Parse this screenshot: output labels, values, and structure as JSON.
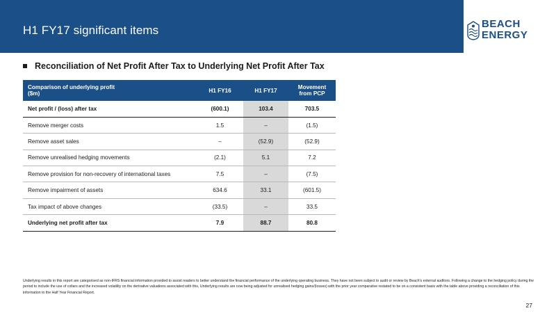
{
  "slide": {
    "title": "H1 FY17 significant items",
    "page_number": "27"
  },
  "logo": {
    "line1": "BEACH",
    "line2": "ENERGY",
    "icon": "beach-energy-logo-mark",
    "color": "#1b4f87"
  },
  "section": {
    "heading": "Reconciliation of Net Profit After Tax to Underlying Net Profit After Tax"
  },
  "table": {
    "header": {
      "label_line1": "Comparison of underlying profit",
      "label_line2": "($m)",
      "col1": "H1 FY16",
      "col2": "H1 FY17",
      "col3_line1": "Movement",
      "col3_line2": "from PCP"
    },
    "rows": [
      {
        "label": "Net profit / (loss) after tax",
        "h1fy16": "(600.1)",
        "h1fy17": "103.4",
        "movement": "703.5"
      },
      {
        "label": "Remove merger costs",
        "h1fy16": "1.5",
        "h1fy17": "–",
        "movement": "(1.5)"
      },
      {
        "label": "Remove asset sales",
        "h1fy16": "–",
        "h1fy17": "(52.9)",
        "movement": "(52.9)"
      },
      {
        "label": "Remove unrealised hedging movements",
        "h1fy16": "(2.1)",
        "h1fy17": "5.1",
        "movement": "7.2"
      },
      {
        "label": "Remove provision for non-recovery of international taxes",
        "h1fy16": "7.5",
        "h1fy17": "–",
        "movement": "(7.5)"
      },
      {
        "label": "Remove impairment of assets",
        "h1fy16": "634.6",
        "h1fy17": "33.1",
        "movement": "(601.5)"
      },
      {
        "label": "Tax impact of above changes",
        "h1fy16": "(33.5)",
        "h1fy17": "–",
        "movement": "33.5"
      },
      {
        "label": "Underlying net profit after tax",
        "h1fy16": "7.9",
        "h1fy17": "88.7",
        "movement": "80.8"
      }
    ]
  },
  "footnote": "Underlying results in this report are categorised as non-IFRS financial information provided to assist readers to better understand the financial performance of the underlying operating business. They have not been subject to audit or review by Beach's external auditors. Following a change to the hedging policy during the period to include the use of collars and the increased volatility on the derivative valuations associated with this, Underlying results are now being adjusted for unrealised hedging gains/(losses) with the prior year comparative restated to be on a consistent basis with the table above providing a reconciliation of this information to the Half Year Financial Report.",
  "colors": {
    "brand_blue": "#1b4f87",
    "highlight_column": "#d9d9d9"
  }
}
